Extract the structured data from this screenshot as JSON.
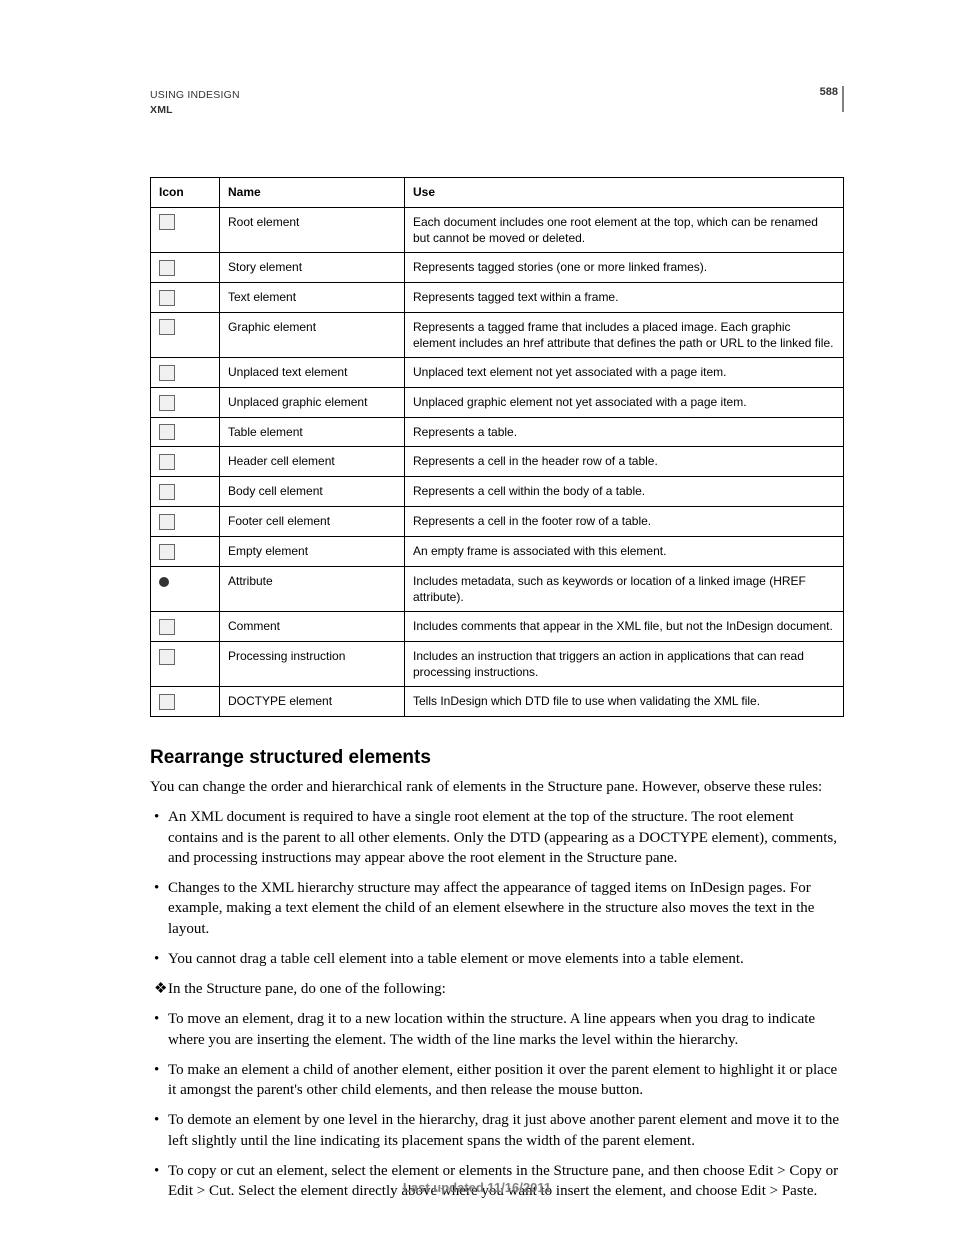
{
  "header": {
    "title": "USING INDESIGN",
    "subtitle": "XML",
    "page_number": "588"
  },
  "table": {
    "columns": [
      "Icon",
      "Name",
      "Use"
    ],
    "rows": [
      {
        "icon": "root-element-icon",
        "shape": "box",
        "name": "Root element",
        "use": "Each document includes one root element at the top, which can be renamed but cannot be moved or deleted."
      },
      {
        "icon": "story-element-icon",
        "shape": "box",
        "name": "Story element",
        "use": "Represents tagged stories (one or more linked frames)."
      },
      {
        "icon": "text-element-icon",
        "shape": "box",
        "name": "Text element",
        "use": "Represents tagged text within a frame."
      },
      {
        "icon": "graphic-element-icon",
        "shape": "box",
        "name": "Graphic element",
        "use": "Represents a tagged frame that includes a placed image. Each graphic element includes an href attribute that defines the path or URL to the linked file."
      },
      {
        "icon": "unplaced-text-element-icon",
        "shape": "box",
        "name": "Unplaced text element",
        "use": "Unplaced text element not yet associated with a page item."
      },
      {
        "icon": "unplaced-graphic-element-icon",
        "shape": "box",
        "name": "Unplaced graphic element",
        "use": "Unplaced graphic element not yet associated with a page item."
      },
      {
        "icon": "table-element-icon",
        "shape": "box",
        "name": "Table element",
        "use": "Represents a table."
      },
      {
        "icon": "header-cell-element-icon",
        "shape": "box",
        "name": "Header cell element",
        "use": "Represents a cell in the header row of a table."
      },
      {
        "icon": "body-cell-element-icon",
        "shape": "box",
        "name": "Body cell element",
        "use": "Represents a cell within the body of a table."
      },
      {
        "icon": "footer-cell-element-icon",
        "shape": "box",
        "name": "Footer cell element",
        "use": "Represents a cell in the footer row of a table."
      },
      {
        "icon": "empty-element-icon",
        "shape": "box",
        "name": "Empty element",
        "use": "An empty frame is associated with this element."
      },
      {
        "icon": "attribute-icon",
        "shape": "dot",
        "name": "Attribute",
        "use": "Includes metadata, such as keywords or location of a linked image (HREF attribute)."
      },
      {
        "icon": "comment-icon",
        "shape": "box",
        "name": "Comment",
        "use": "Includes comments that appear in the XML file, but not the InDesign document."
      },
      {
        "icon": "processing-instruction-icon",
        "shape": "box",
        "name": "Processing instruction",
        "use": "Includes an instruction that triggers an action in applications that can read processing instructions."
      },
      {
        "icon": "doctype-element-icon",
        "shape": "box",
        "name": "DOCTYPE element",
        "use": "Tells InDesign which DTD file to use when validating the XML file."
      }
    ]
  },
  "section": {
    "heading": "Rearrange structured elements",
    "intro": "You can change the order and hierarchical rank of elements in the Structure pane. However, observe these rules:",
    "items": [
      {
        "bullet": "•",
        "text": "An XML document is required to have a single root element at the top of the structure. The root element contains and is the parent to all other elements. Only the DTD (appearing as a DOCTYPE element), comments, and processing instructions may appear above the root element in the Structure pane."
      },
      {
        "bullet": "•",
        "text": "Changes to the XML hierarchy structure may affect the appearance of tagged items on InDesign pages. For example, making a text element the child of an element elsewhere in the structure also moves the text in the layout."
      },
      {
        "bullet": "•",
        "text": "You cannot drag a table cell element into a table element or move elements into a table element."
      },
      {
        "bullet": "❖",
        "text": "In the Structure pane, do one of the following:"
      },
      {
        "bullet": "•",
        "text": "To move an element, drag it to a new location within the structure. A line appears when you drag to indicate where you are inserting the element. The width of the line marks the level within the hierarchy."
      },
      {
        "bullet": "•",
        "text": "To make an element a child of another element, either position it over the parent element to highlight it or place it amongst the parent's other child elements, and then release the mouse button."
      },
      {
        "bullet": "•",
        "text": "To demote an element by one level in the hierarchy, drag it just above another parent element and move it to the left slightly until the line indicating its placement spans the width of the parent element."
      },
      {
        "bullet": "•",
        "text": "To copy or cut an element, select the element or elements in the Structure pane, and then choose Edit > Copy or Edit > Cut. Select the element directly above where you want to insert the element, and choose Edit > Paste."
      }
    ]
  },
  "footer": "Last updated 11/16/2011"
}
